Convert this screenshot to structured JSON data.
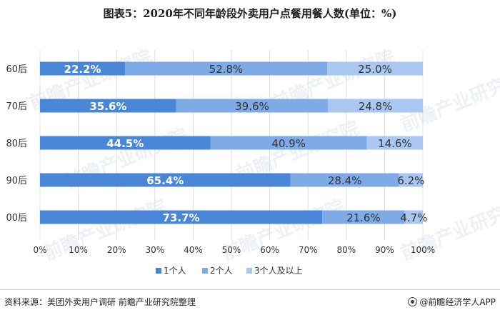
{
  "title": "图表5：2020年不同年龄段外卖用户点餐用餐人数(单位：%)",
  "source": "资料来源：美团外卖用户调研 前瞻产业研究院整理",
  "credit": "@前瞻经济学人APP",
  "watermark": "前瞻产业研究院",
  "colors": {
    "series1": "#4a86d8",
    "series2": "#7eaae6",
    "series3": "#a9c7f0",
    "grid": "#dddddd",
    "text": "#333333"
  },
  "chart_data": {
    "type": "bar",
    "orientation": "horizontal",
    "stacked": "percent",
    "categories": [
      "60后",
      "70后",
      "80后",
      "90后",
      "00后"
    ],
    "series": [
      {
        "name": "1个人",
        "values": [
          22.2,
          35.6,
          44.5,
          65.4,
          73.7
        ],
        "labels": [
          "22.2%",
          "35.6%",
          "44.5%",
          "65.4%",
          "73.7%"
        ]
      },
      {
        "name": "2个人",
        "values": [
          52.8,
          39.6,
          40.9,
          28.4,
          21.6
        ],
        "labels": [
          "52.8%",
          "39.6%",
          "40.9%",
          "28.4%",
          "21.6%"
        ]
      },
      {
        "name": "3个人及以上",
        "values": [
          25.0,
          24.8,
          14.6,
          6.2,
          4.7
        ],
        "labels": [
          "25.0%",
          "24.8%",
          "14.6%",
          "6.2%",
          "4.7%"
        ]
      }
    ],
    "xlim": [
      0,
      100
    ],
    "xticks": [
      "0%",
      "10%",
      "20%",
      "30%",
      "40%",
      "50%",
      "60%",
      "70%",
      "80%",
      "90%",
      "100%"
    ],
    "grid": true,
    "legend": "bottom"
  }
}
